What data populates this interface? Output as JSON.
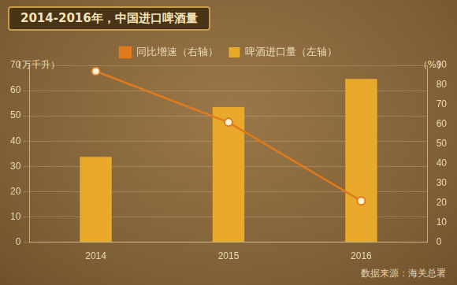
{
  "chart_data": {
    "type": "bar",
    "title": "2014-2016年，中国进口啤酒量",
    "categories": [
      "2014",
      "2015",
      "2016"
    ],
    "series": [
      {
        "name": "啤酒进口量（左轴）",
        "type": "bar",
        "color": "#e9a92b",
        "values": [
          33.8,
          53.5,
          64.6
        ]
      },
      {
        "name": "同比增速（右轴）",
        "type": "line",
        "color": "#e07a1f",
        "marker": "circle",
        "axis": "y2",
        "values": [
          87,
          61,
          21
        ]
      }
    ],
    "y_label": "（万千升）",
    "y2_label": "（%）",
    "ylim": [
      0,
      70
    ],
    "yticks": [
      0,
      10,
      20,
      30,
      40,
      50,
      60,
      70
    ],
    "y2lim": [
      0,
      90
    ],
    "y2ticks": [
      0,
      10,
      20,
      30,
      40,
      50,
      60,
      70,
      80,
      90
    ],
    "grid": true,
    "legend": "top",
    "annotations": [
      "数据来源：海关总署"
    ]
  }
}
